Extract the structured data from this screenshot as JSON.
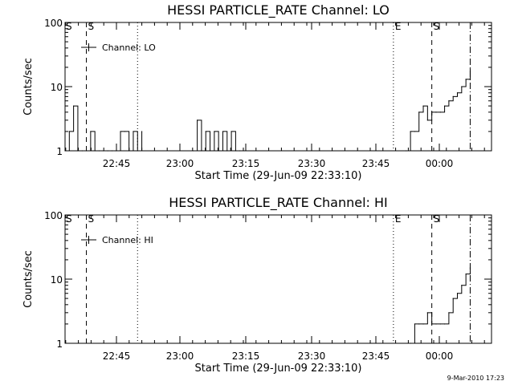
{
  "chart_data": [
    {
      "type": "line",
      "title": "HESSI PARTICLE_RATE Channel: LO",
      "xlabel": "Start Time (29-Jun-09 22:33:10)",
      "ylabel": "Counts/sec",
      "y_scale": "log",
      "ylim": [
        1,
        100
      ],
      "y_ticks": [
        "1",
        "10",
        "100"
      ],
      "x_ticks": [
        "22:45",
        "23:00",
        "23:15",
        "23:30",
        "23:45",
        "00:00"
      ],
      "xlim_minutes": [
        0,
        100
      ],
      "grid": false,
      "legend": {
        "position": "top-left",
        "entries": [
          "Channel: LO"
        ]
      },
      "vertical_markers": [
        {
          "label": "S",
          "minute": 5,
          "style": "dashed"
        },
        {
          "label": "",
          "minute": 17,
          "style": "dotted"
        },
        {
          "label": "E",
          "minute": 77,
          "style": "dotted"
        },
        {
          "label": "S",
          "minute": 86,
          "style": "dashed"
        },
        {
          "label": "",
          "minute": 95,
          "style": "dashdot"
        }
      ],
      "series": [
        {
          "name": "Channel: LO",
          "x": [
            0,
            1,
            2,
            3,
            4,
            5,
            6,
            7,
            8,
            9,
            10,
            11,
            12,
            13,
            14,
            15,
            16,
            17,
            18,
            30,
            31,
            32,
            33,
            34,
            35,
            36,
            37,
            38,
            39,
            40,
            41,
            80,
            81,
            82,
            83,
            84,
            85,
            86,
            87,
            88,
            89,
            90,
            91,
            92,
            93,
            94,
            95
          ],
          "y": [
            1,
            2,
            5,
            1,
            1,
            1,
            2,
            1,
            1,
            1,
            1,
            1,
            1,
            2,
            2,
            1,
            2,
            1,
            2,
            1,
            3,
            1,
            2,
            1,
            2,
            1,
            2,
            1,
            2,
            1,
            1,
            1,
            2,
            2,
            4,
            5,
            3,
            4,
            4,
            4,
            5,
            6,
            7,
            8,
            10,
            13,
            19
          ]
        }
      ]
    },
    {
      "type": "line",
      "title": "HESSI PARTICLE_RATE Channel: HI",
      "xlabel": "Start Time (29-Jun-09 22:33:10)",
      "ylabel": "Counts/sec",
      "y_scale": "log",
      "ylim": [
        1,
        100
      ],
      "y_ticks": [
        "1",
        "10",
        "100"
      ],
      "x_ticks": [
        "22:45",
        "23:00",
        "23:15",
        "23:30",
        "23:45",
        "00:00"
      ],
      "xlim_minutes": [
        0,
        100
      ],
      "grid": false,
      "legend": {
        "position": "top-left",
        "entries": [
          "Channel: HI"
        ]
      },
      "vertical_markers": [
        {
          "label": "S",
          "minute": 5,
          "style": "dashed"
        },
        {
          "label": "",
          "minute": 17,
          "style": "dotted"
        },
        {
          "label": "E",
          "minute": 77,
          "style": "dotted"
        },
        {
          "label": "S",
          "minute": 86,
          "style": "dashed"
        },
        {
          "label": "",
          "minute": 95,
          "style": "dashdot"
        }
      ],
      "series": [
        {
          "name": "Channel: HI",
          "x": [
            81,
            82,
            83,
            84,
            85,
            86,
            87,
            88,
            89,
            90,
            91,
            92,
            93,
            94,
            95
          ],
          "y": [
            1,
            2,
            2,
            2,
            3,
            2,
            2,
            2,
            2,
            3,
            5,
            6,
            8,
            12,
            15
          ]
        }
      ]
    }
  ],
  "timestamp": "9-Mar-2010 17:23"
}
